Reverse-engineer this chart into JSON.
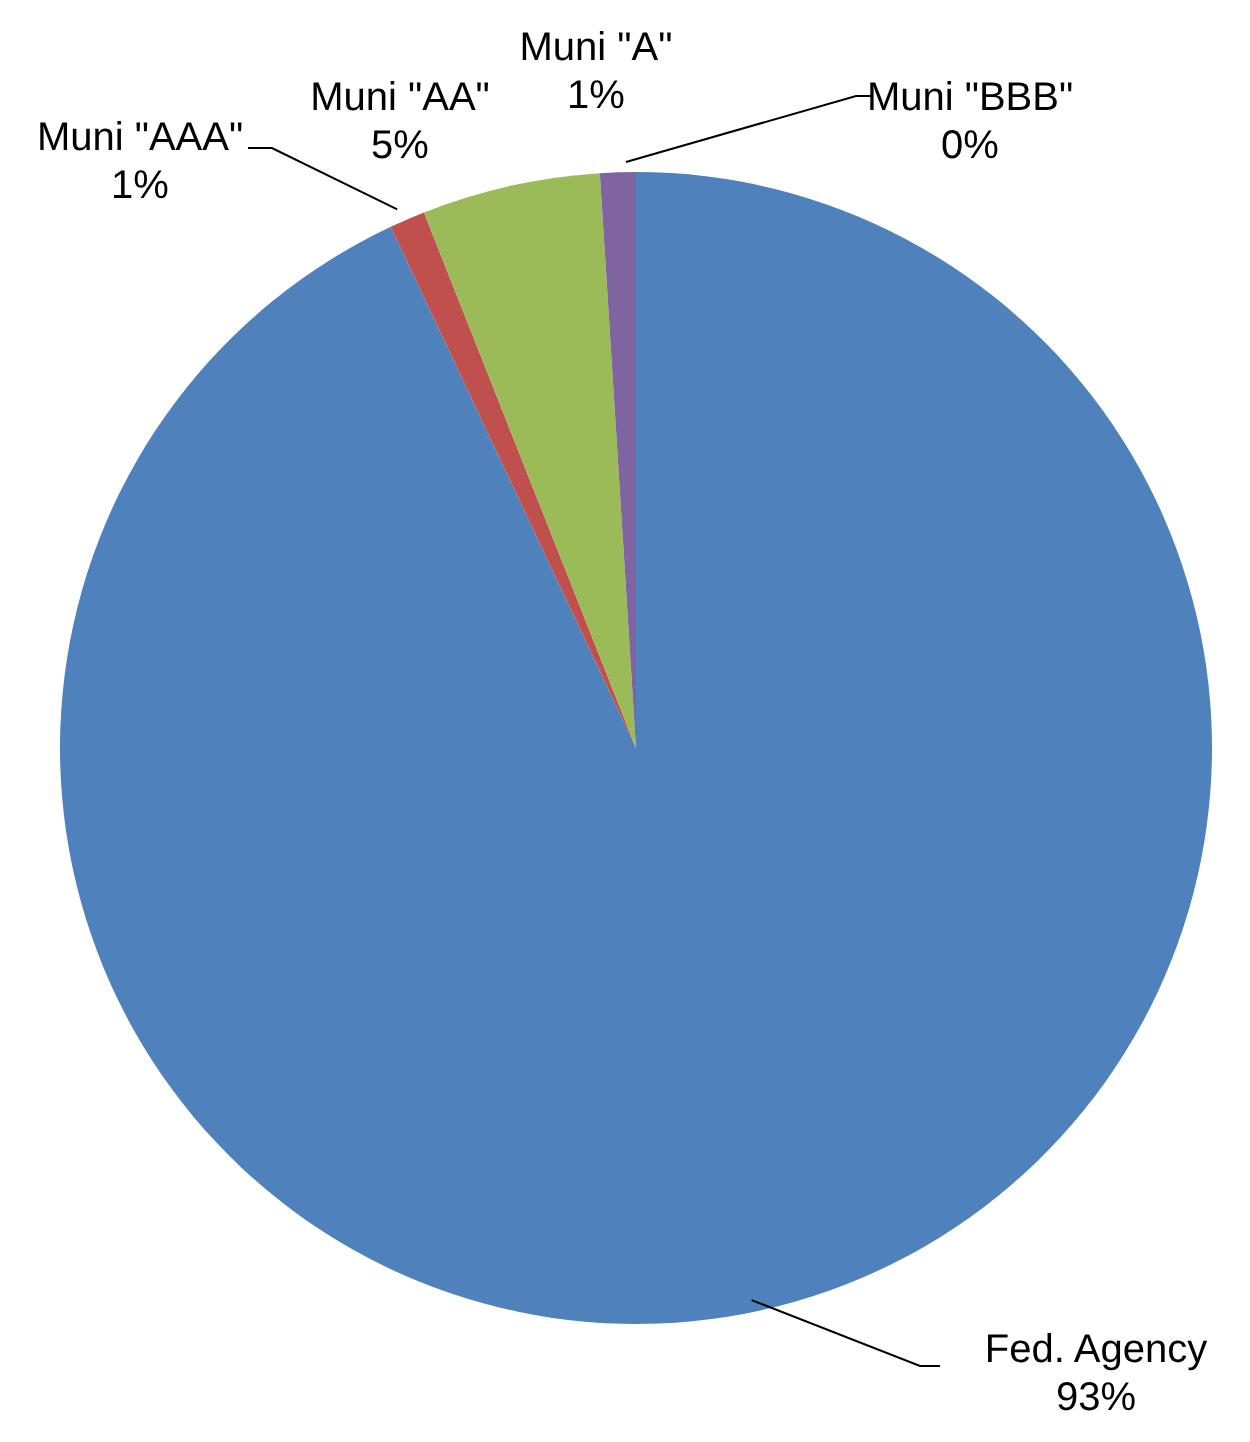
{
  "chart_data": {
    "type": "pie",
    "categories": [
      "Fed. Agency",
      "Muni \"AAA\"",
      "Muni \"AA\"",
      "Muni \"A\"",
      "Muni \"BBB\""
    ],
    "values": [
      93,
      1,
      5,
      1,
      0
    ],
    "colors": [
      "#4f81bd",
      "#c0504d",
      "#9bbb59",
      "#8064a2",
      "#4bacc6"
    ],
    "value_labels": [
      "93%",
      "1%",
      "5%",
      "1%",
      "0%"
    ]
  }
}
